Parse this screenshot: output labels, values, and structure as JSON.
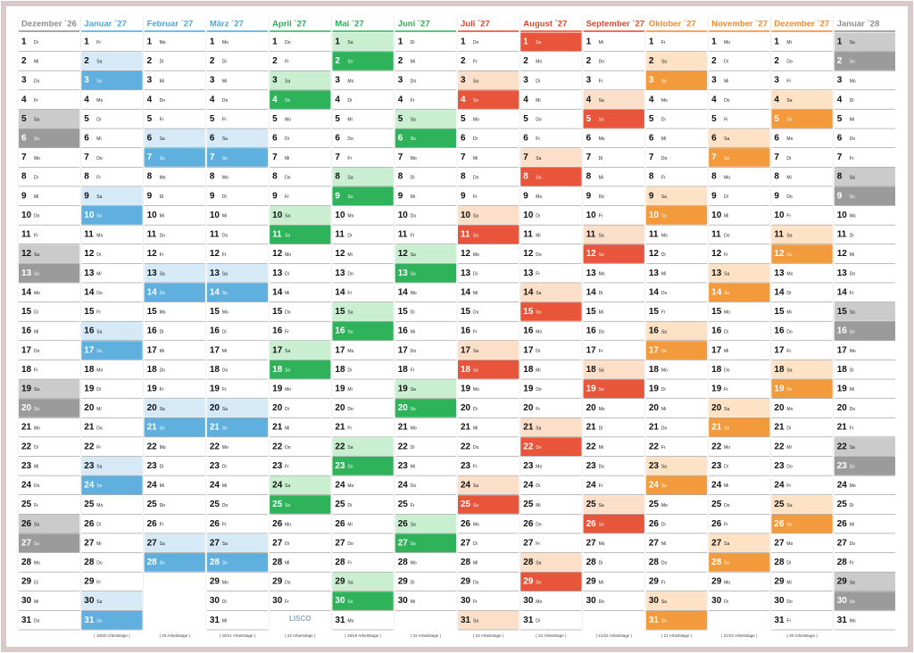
{
  "day_numbers": [
    1,
    2,
    3,
    4,
    5,
    6,
    7,
    8,
    9,
    10,
    11,
    12,
    13,
    14,
    15,
    16,
    17,
    18,
    19,
    20,
    21,
    22,
    23,
    24,
    25,
    26,
    27,
    28,
    29,
    30,
    31
  ],
  "weekend_days": [
    "Sa",
    "So"
  ],
  "brand": "LISCO",
  "months": [
    {
      "name": "Dezember ´26",
      "color": "#8c8c8c",
      "dark": "#9b9b9b",
      "light": "#cbcbcb",
      "weekdays": [
        "Di",
        "Mi",
        "Do",
        "Fr",
        "Sa",
        "So",
        "Mo",
        "Di",
        "Mi",
        "Do",
        "Fr",
        "Sa",
        "So",
        "Mo",
        "Di",
        "Mi",
        "Do",
        "Fr",
        "Sa",
        "So",
        "Mo",
        "Di",
        "Mi",
        "Do",
        "Fr",
        "Sa",
        "So",
        "Mo",
        "Di",
        "Mi",
        "Do"
      ]
    },
    {
      "name": "Januar ´27",
      "color": "#4aa6d8",
      "dark": "#5fb0de",
      "light": "#d5eaf6",
      "weekdays": [
        "Fr",
        "Sa",
        "So",
        "Mo",
        "Di",
        "Mi",
        "Do",
        "Fr",
        "Sa",
        "So",
        "Mo",
        "Di",
        "Mi",
        "Do",
        "Fr",
        "Sa",
        "So",
        "Mo",
        "Di",
        "Mi",
        "Do",
        "Fr",
        "Sa",
        "So",
        "Mo",
        "Di",
        "Mi",
        "Do",
        "Fr",
        "Sa",
        "So"
      ],
      "footer": "( 19/20 Arbeitstage )"
    },
    {
      "name": "Februar ´27",
      "color": "#4aa6d8",
      "dark": "#5fb0de",
      "light": "#d5eaf6",
      "weekdays": [
        "Mo",
        "Di",
        "Mi",
        "Do",
        "Fr",
        "Sa",
        "So",
        "Mo",
        "Di",
        "Mi",
        "Do",
        "Fr",
        "Sa",
        "So",
        "Mo",
        "Di",
        "Mi",
        "Do",
        "Fr",
        "Sa",
        "So",
        "Mo",
        "Di",
        "Mi",
        "Do",
        "Fr",
        "Sa",
        "So"
      ],
      "footer": "( 20 Arbeitstage )"
    },
    {
      "name": "März ´27",
      "color": "#4aa6d8",
      "dark": "#5fb0de",
      "light": "#d5eaf6",
      "weekdays": [
        "Mo",
        "Di",
        "Mi",
        "Do",
        "Fr",
        "Sa",
        "So",
        "Mo",
        "Di",
        "Mi",
        "Do",
        "Fr",
        "Sa",
        "So",
        "Mo",
        "Di",
        "Mi",
        "Do",
        "Fr",
        "Sa",
        "So",
        "Mo",
        "Di",
        "Mi",
        "Do",
        "Fr",
        "Sa",
        "So",
        "Mo",
        "Di",
        "Mi"
      ],
      "footer": "( 20/21 Arbeitstage )"
    },
    {
      "name": "April ´27",
      "color": "#2aae55",
      "dark": "#2eb35a",
      "light": "#c9efd0",
      "weekdays": [
        "Do",
        "Fr",
        "Sa",
        "So",
        "Mo",
        "Di",
        "Mi",
        "Do",
        "Fr",
        "Sa",
        "So",
        "Mo",
        "Di",
        "Mi",
        "Do",
        "Fr",
        "Sa",
        "So",
        "Mo",
        "Di",
        "Mi",
        "Do",
        "Fr",
        "Sa",
        "So",
        "Mo",
        "Di",
        "Mi",
        "Do",
        "Fr"
      ],
      "footer": "( 22 Arbeitstage )"
    },
    {
      "name": "Mai ´27",
      "color": "#2aae55",
      "dark": "#2eb35a",
      "light": "#c9efd0",
      "weekdays": [
        "Sa",
        "So",
        "Mo",
        "Di",
        "Mi",
        "Do",
        "Fr",
        "Sa",
        "So",
        "Mo",
        "Di",
        "Mi",
        "Do",
        "Fr",
        "Sa",
        "So",
        "Mo",
        "Di",
        "Mi",
        "Do",
        "Fr",
        "Sa",
        "So",
        "Mo",
        "Di",
        "Mi",
        "Do",
        "Fr",
        "Sa",
        "So",
        "Mo"
      ],
      "footer": "( 18/19 Arbeitstage )"
    },
    {
      "name": "Juni ´27",
      "color": "#2aae55",
      "dark": "#2eb35a",
      "light": "#c9efd0",
      "weekdays": [
        "Di",
        "Mi",
        "Do",
        "Fr",
        "Sa",
        "So",
        "Mo",
        "Di",
        "Mi",
        "Do",
        "Fr",
        "Sa",
        "So",
        "Mo",
        "Di",
        "Mi",
        "Do",
        "Fr",
        "Sa",
        "So",
        "Mo",
        "Di",
        "Mi",
        "Do",
        "Fr",
        "Sa",
        "So",
        "Mo",
        "Di",
        "Mi"
      ],
      "footer": "( 22 Arbeitstage )"
    },
    {
      "name": "Juli ´27",
      "color": "#e0452b",
      "dark": "#e8553a",
      "light": "#fbdfc9",
      "weekdays": [
        "Do",
        "Fr",
        "Sa",
        "So",
        "Mo",
        "Di",
        "Mi",
        "Do",
        "Fr",
        "Sa",
        "So",
        "Mo",
        "Di",
        "Mi",
        "Do",
        "Fr",
        "Sa",
        "So",
        "Mo",
        "Di",
        "Mi",
        "Do",
        "Fr",
        "Sa",
        "So",
        "Mo",
        "Di",
        "Mi",
        "Do",
        "Fr",
        "Sa"
      ],
      "footer": "( 22 Arbeitstage )"
    },
    {
      "name": "August ´27",
      "color": "#e0452b",
      "dark": "#e8553a",
      "light": "#fbdfc9",
      "weekdays": [
        "So",
        "Mo",
        "Di",
        "Mi",
        "Do",
        "Fr",
        "Sa",
        "So",
        "Mo",
        "Di",
        "Mi",
        "Do",
        "Fr",
        "Sa",
        "So",
        "Mo",
        "Di",
        "Mi",
        "Do",
        "Fr",
        "Sa",
        "So",
        "Mo",
        "Di",
        "Mi",
        "Do",
        "Fr",
        "Sa",
        "So",
        "Mo",
        "Di"
      ],
      "footer": "( 22 Arbeitstage )"
    },
    {
      "name": "September ´27",
      "color": "#e0452b",
      "dark": "#e8553a",
      "light": "#fbdfc9",
      "weekdays": [
        "Mi",
        "Do",
        "Fr",
        "Sa",
        "So",
        "Mo",
        "Di",
        "Mi",
        "Do",
        "Fr",
        "Sa",
        "So",
        "Mo",
        "Di",
        "Mi",
        "Do",
        "Fr",
        "Sa",
        "So",
        "Mo",
        "Di",
        "Mi",
        "Do",
        "Fr",
        "Sa",
        "So",
        "Mo",
        "Di",
        "Mi",
        "Do"
      ],
      "footer": "( 21/22 Arbeitstage )"
    },
    {
      "name": "Oktober ´27",
      "color": "#f08a2c",
      "dark": "#f39a3c",
      "light": "#fde2c5",
      "weekdays": [
        "Fr",
        "Sa",
        "So",
        "Mo",
        "Di",
        "Mi",
        "Do",
        "Fr",
        "Sa",
        "So",
        "Mo",
        "Di",
        "Mi",
        "Do",
        "Fr",
        "Sa",
        "So",
        "Mo",
        "Di",
        "Mi",
        "Do",
        "Fr",
        "Sa",
        "So",
        "Mo",
        "Di",
        "Mi",
        "Do",
        "Fr",
        "Sa",
        "So"
      ],
      "footer": "( 21 Arbeitstage )"
    },
    {
      "name": "November ´27",
      "color": "#f08a2c",
      "dark": "#f39a3c",
      "light": "#fde2c5",
      "weekdays": [
        "Mo",
        "Di",
        "Mi",
        "Do",
        "Fr",
        "Sa",
        "So",
        "Mo",
        "Di",
        "Mi",
        "Do",
        "Fr",
        "Sa",
        "So",
        "Mo",
        "Di",
        "Mi",
        "Do",
        "Fr",
        "Sa",
        "So",
        "Mo",
        "Di",
        "Mi",
        "Do",
        "Fr",
        "Sa",
        "So",
        "Mo",
        "Di"
      ],
      "footer": "( 21/22 Arbeitstage )"
    },
    {
      "name": "Dezember ´27",
      "color": "#f08a2c",
      "dark": "#f39a3c",
      "light": "#fde2c5",
      "weekdays": [
        "Mi",
        "Do",
        "Fr",
        "Sa",
        "So",
        "Mo",
        "Di",
        "Mi",
        "Do",
        "Fr",
        "Sa",
        "So",
        "Mo",
        "Di",
        "Mi",
        "Do",
        "Fr",
        "Sa",
        "So",
        "Mo",
        "Di",
        "Mi",
        "Do",
        "Fr",
        "Sa",
        "So",
        "Mo",
        "Di",
        "Mi",
        "Do",
        "Fr"
      ],
      "footer": "( 20 Arbeitstage )"
    },
    {
      "name": "Januar ´28",
      "color": "#8c8c8c",
      "dark": "#9b9b9b",
      "light": "#cbcbcb",
      "weekdays": [
        "Sa",
        "So",
        "Mo",
        "Di",
        "Mi",
        "Do",
        "Fr",
        "Sa",
        "So",
        "Mo",
        "Di",
        "Mi",
        "Do",
        "Fr",
        "Sa",
        "So",
        "Mo",
        "Di",
        "Mi",
        "Do",
        "Fr",
        "Sa",
        "So",
        "Mo",
        "Di",
        "Mi",
        "Do",
        "Fr",
        "Sa",
        "So",
        "Mo"
      ]
    }
  ]
}
